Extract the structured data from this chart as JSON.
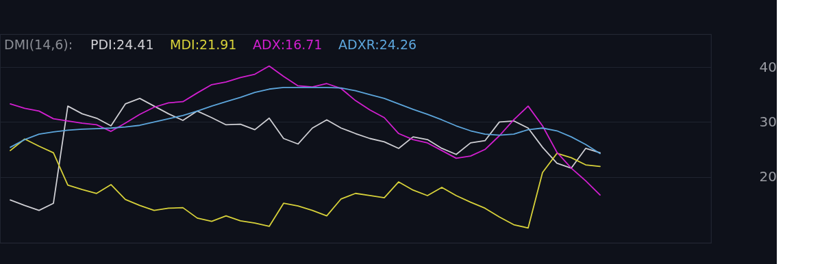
{
  "chart_data": {
    "type": "line",
    "legend_title": "DMI(14,6):",
    "categories": [
      null,
      null,
      null,
      null,
      null,
      null,
      null,
      null,
      null,
      null,
      null,
      null,
      null,
      null,
      null,
      null,
      null,
      null,
      null,
      null,
      null,
      null,
      null,
      null,
      null,
      null,
      null,
      null,
      null,
      null,
      null,
      null,
      null,
      null,
      null,
      null,
      null,
      null,
      null,
      null,
      null,
      null,
      null,
      null,
      null,
      null,
      null,
      null,
      null
    ],
    "series": [
      {
        "name": "PDI:24.41",
        "color": "#cfcfd4",
        "values": [
          15.8,
          14.8,
          13.9,
          15.2,
          32.9,
          31.5,
          30.7,
          29.3,
          33.3,
          34.3,
          32.9,
          31.5,
          30.3,
          32.0,
          30.8,
          29.5,
          29.6,
          28.6,
          30.7,
          27.0,
          26.0,
          28.9,
          30.4,
          28.9,
          27.9,
          27.0,
          26.4,
          25.2,
          27.3,
          26.8,
          25.2,
          24.1,
          26.2,
          26.6,
          30.0,
          30.2,
          28.9,
          25.4,
          22.5,
          21.6,
          25.2,
          24.41,
          null,
          null,
          null,
          null,
          null,
          null,
          null
        ]
      },
      {
        "name": "MDI:21.91",
        "color": "#d8d23a",
        "values": [
          24.8,
          26.9,
          25.6,
          24.4,
          18.5,
          17.7,
          17.0,
          18.6,
          15.9,
          14.8,
          13.9,
          14.3,
          14.4,
          12.5,
          11.9,
          12.9,
          12.0,
          11.6,
          11.0,
          15.2,
          14.7,
          13.9,
          12.9,
          16.0,
          17.0,
          16.6,
          16.2,
          19.1,
          17.6,
          16.6,
          18.1,
          16.6,
          15.4,
          14.3,
          12.7,
          11.3,
          10.7,
          20.8,
          24.3,
          23.5,
          22.2,
          21.91,
          null,
          null,
          null,
          null,
          null,
          null,
          null
        ]
      },
      {
        "name": "ADX:16.71",
        "color": "#d21fd0",
        "values": [
          33.3,
          32.5,
          32.0,
          30.6,
          30.2,
          29.8,
          29.5,
          28.3,
          29.8,
          31.4,
          32.7,
          33.5,
          33.7,
          35.3,
          36.8,
          37.3,
          38.1,
          38.7,
          40.2,
          38.3,
          36.6,
          36.4,
          37.0,
          36.1,
          33.9,
          32.2,
          30.8,
          27.9,
          26.8,
          26.2,
          24.8,
          23.4,
          23.8,
          25.0,
          27.5,
          30.4,
          32.9,
          29.3,
          24.5,
          21.6,
          19.3,
          16.71,
          null,
          null,
          null,
          null,
          null,
          null,
          null
        ]
      },
      {
        "name": "ADXR:24.26",
        "color": "#5da6dc",
        "values": [
          25.4,
          26.8,
          27.8,
          28.2,
          28.5,
          28.7,
          28.8,
          28.9,
          29.1,
          29.4,
          30.0,
          30.6,
          31.2,
          32.0,
          32.9,
          33.7,
          34.5,
          35.4,
          36.0,
          36.3,
          36.3,
          36.3,
          36.3,
          36.2,
          35.7,
          35.0,
          34.3,
          33.3,
          32.3,
          31.4,
          30.4,
          29.3,
          28.4,
          27.8,
          27.6,
          27.8,
          28.6,
          28.9,
          28.4,
          27.3,
          25.9,
          24.26,
          null,
          null,
          null,
          null,
          null,
          null,
          null
        ]
      }
    ],
    "ylim": [
      8,
      46
    ],
    "yticks": [
      20,
      30,
      40
    ],
    "grid": "y",
    "legend": "top left",
    "tick_labels": "y"
  }
}
